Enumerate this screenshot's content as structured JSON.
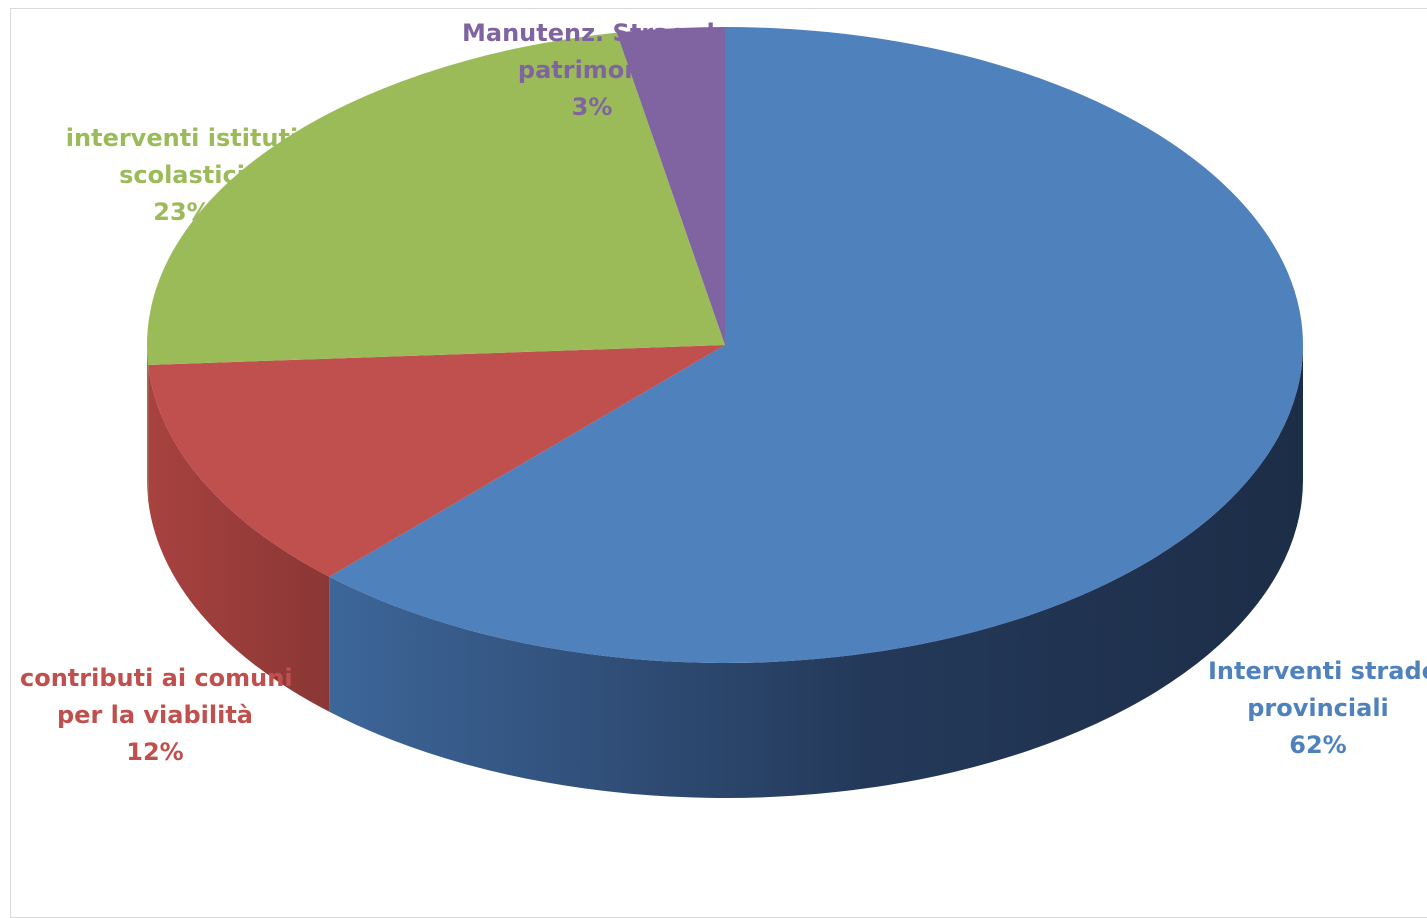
{
  "chart_data": {
    "type": "pie",
    "title": "",
    "slices": [
      {
        "name": "Interventi strade provinciali",
        "label_lines": [
          "Interventi strade",
          "provinciali"
        ],
        "pct_label": "62%",
        "value": 62,
        "color": "#4f81bd",
        "side_dark": "#1f3350",
        "side_light": "#3a6498"
      },
      {
        "name": "contributi ai comuni per la viabilità",
        "label_lines": [
          "contributi ai comuni",
          "per la viabilità"
        ],
        "pct_label": "12%",
        "value": 12,
        "color": "#c0504d",
        "side_dark": "#8e3a38",
        "side_light": "#a8423f"
      },
      {
        "name": "interventi istituti scolastici",
        "label_lines": [
          "interventi istituti",
          "scolastici"
        ],
        "pct_label": "23%",
        "value": 23,
        "color": "#9bbb59",
        "side_dark": "#6f8a3c",
        "side_light": "#86a34b"
      },
      {
        "name": "Manutenz. Straord. patrimonio",
        "label_lines": [
          "Manutenz. Straord.",
          "patrimonio"
        ],
        "pct_label": "3%",
        "value": 3,
        "color": "#8064a2",
        "side_dark": "#5a4573",
        "side_light": "#6d558b"
      }
    ]
  }
}
